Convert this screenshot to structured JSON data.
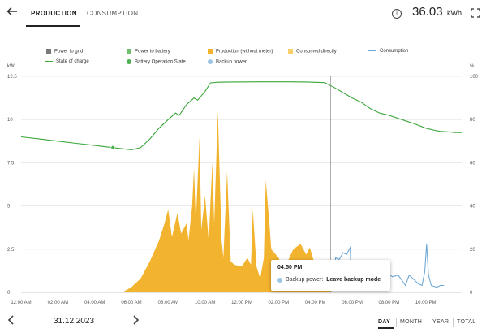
{
  "header": {
    "tabs": [
      {
        "label": "PRODUCTION",
        "active": true
      },
      {
        "label": "CONSUMPTION",
        "active": false
      }
    ],
    "total_value": "36.03",
    "total_unit": "kWh",
    "icons": {
      "back": "arrow-left-icon",
      "info": "info-icon",
      "fullscreen": "fullscreen-icon"
    }
  },
  "legend": [
    {
      "label": "Power to grid",
      "color": "#7a7a7a",
      "marker": "square"
    },
    {
      "label": "Power to battery",
      "color": "#6fbf6f",
      "marker": "square"
    },
    {
      "label": "Production (without meter)",
      "color": "#f2b32e",
      "marker": "square"
    },
    {
      "label": "Consumed directly",
      "color": "#f9cf6a",
      "marker": "square"
    },
    {
      "label": "Consumption",
      "color": "#6fa8d6",
      "marker": "line"
    },
    {
      "label": "State of charge",
      "color": "#3aa63a",
      "marker": "line"
    },
    {
      "label": "Battery Operation State",
      "color": "#4caf50",
      "marker": "dot"
    },
    {
      "label": "Backup power",
      "color": "#9cc5e3",
      "marker": "dot"
    }
  ],
  "chart_data": {
    "type": "area",
    "left_axis": {
      "unit": "kW",
      "ticks": [
        "0",
        "2.5",
        "5",
        "7.5",
        "10",
        "12.5"
      ],
      "range": [
        0,
        12.5
      ]
    },
    "right_axis": {
      "unit": "%",
      "ticks": [
        "0",
        "20",
        "40",
        "60",
        "80",
        "100"
      ],
      "range": [
        0,
        100
      ]
    },
    "x_labels": [
      "12:00 AM",
      "02:00 AM",
      "04:00 AM",
      "06:00 AM",
      "08:00 AM",
      "10:00 AM",
      "12:00 PM",
      "02:00 PM",
      "04:00 PM",
      "06:00 PM",
      "08:00 PM",
      "10:00 PM"
    ],
    "x_range_hours": [
      0,
      24
    ],
    "series": [
      {
        "name": "Production (without meter)",
        "axis": "left",
        "color": "#f2b32e",
        "points": [
          [
            0,
            0
          ],
          [
            5.5,
            0
          ],
          [
            6,
            0.3
          ],
          [
            6.5,
            0.8
          ],
          [
            7,
            1.8
          ],
          [
            7.5,
            3.0
          ],
          [
            7.8,
            4.0
          ],
          [
            8,
            4.8
          ],
          [
            8.2,
            3.2
          ],
          [
            8.5,
            4.6
          ],
          [
            8.7,
            3.4
          ],
          [
            9,
            4.0
          ],
          [
            9.1,
            3.0
          ],
          [
            9.3,
            5.0
          ],
          [
            9.4,
            7.2
          ],
          [
            9.5,
            4.0
          ],
          [
            9.7,
            9.0
          ],
          [
            9.8,
            3.6
          ],
          [
            10,
            5.6
          ],
          [
            10.2,
            3.0
          ],
          [
            10.4,
            7.5
          ],
          [
            10.5,
            4.0
          ],
          [
            10.7,
            10.5
          ],
          [
            10.9,
            3.0
          ],
          [
            11,
            2.0
          ],
          [
            11.2,
            7.0
          ],
          [
            11.4,
            1.8
          ],
          [
            11.6,
            1.6
          ],
          [
            12,
            1.5
          ],
          [
            12.3,
            2.0
          ],
          [
            12.5,
            1.6
          ],
          [
            12.6,
            4.8
          ],
          [
            12.8,
            1.5
          ],
          [
            13,
            0.8
          ],
          [
            13.2,
            2.0
          ],
          [
            13.3,
            6.5
          ],
          [
            13.5,
            4.0
          ],
          [
            13.6,
            2.5
          ],
          [
            14,
            2.0
          ],
          [
            14.2,
            1.5
          ],
          [
            14.5,
            1.8
          ],
          [
            14.8,
            2.5
          ],
          [
            15.2,
            2.8
          ],
          [
            15.5,
            2.2
          ],
          [
            15.7,
            2.6
          ],
          [
            16,
            1.5
          ],
          [
            16.3,
            1.2
          ],
          [
            16.6,
            0.6
          ],
          [
            16.8,
            0.1
          ],
          [
            17,
            0
          ]
        ]
      },
      {
        "name": "Consumption",
        "axis": "left",
        "color": "#6fa8d6",
        "points": [
          [
            16.9,
            0.1
          ],
          [
            17,
            1.0
          ],
          [
            17.1,
            2.0
          ],
          [
            17.3,
            1.9
          ],
          [
            17.5,
            2.3
          ],
          [
            17.7,
            2.2
          ],
          [
            17.8,
            2.4
          ],
          [
            17.9,
            2.6
          ],
          [
            17.95,
            0.2
          ],
          [
            18.1,
            0.4
          ],
          [
            18.4,
            0.9
          ],
          [
            18.7,
            0.6
          ],
          [
            19,
            0.8
          ],
          [
            19.3,
            1.2
          ],
          [
            19.6,
            1.0
          ],
          [
            19.9,
            1.1
          ],
          [
            20.2,
            0.9
          ],
          [
            20.5,
            1.0
          ],
          [
            20.7,
            0.7
          ],
          [
            20.9,
            0.4
          ],
          [
            21.1,
            1.0
          ],
          [
            21.4,
            0.7
          ],
          [
            21.6,
            0.5
          ],
          [
            21.8,
            0.4
          ],
          [
            21.95,
            1.2
          ],
          [
            22.05,
            2.8
          ],
          [
            22.15,
            1.0
          ],
          [
            22.3,
            0.4
          ],
          [
            22.6,
            0.3
          ],
          [
            22.8,
            0.4
          ],
          [
            23,
            0.4
          ]
        ]
      },
      {
        "name": "State of charge",
        "axis": "right",
        "color": "#3aa63a",
        "points": [
          [
            0,
            72
          ],
          [
            1,
            71
          ],
          [
            2,
            70
          ],
          [
            3,
            69
          ],
          [
            4,
            68
          ],
          [
            5,
            67
          ],
          [
            6,
            66
          ],
          [
            6.5,
            67
          ],
          [
            7,
            71
          ],
          [
            7.5,
            76
          ],
          [
            8,
            80
          ],
          [
            8.4,
            83
          ],
          [
            8.6,
            82
          ],
          [
            9,
            87
          ],
          [
            9.4,
            90
          ],
          [
            9.6,
            89
          ],
          [
            10,
            93
          ],
          [
            10.3,
            97
          ],
          [
            10.7,
            97.3
          ],
          [
            11.5,
            97.4
          ],
          [
            13,
            97.5
          ],
          [
            14.5,
            97.5
          ],
          [
            15.5,
            97.4
          ],
          [
            16.5,
            97.1
          ],
          [
            17,
            95
          ],
          [
            18,
            90
          ],
          [
            18.5,
            88
          ],
          [
            19,
            85
          ],
          [
            19.5,
            83
          ],
          [
            20,
            82
          ],
          [
            20.7,
            80
          ],
          [
            21.4,
            78
          ],
          [
            22,
            76
          ],
          [
            22.5,
            75
          ],
          [
            22.8,
            74.5
          ],
          [
            23.3,
            74.3
          ],
          [
            23.6,
            74
          ],
          [
            23.9,
            74
          ],
          [
            24,
            74
          ]
        ]
      }
    ],
    "markers": [
      {
        "series": "State of charge",
        "x_hours": 5.0,
        "value": 67,
        "color": "#4caf50"
      },
      {
        "series": "Backup power",
        "x_hours": 17.3,
        "value": 0.2,
        "color": "#9cc5e3"
      }
    ],
    "cursor_hours": 16.83
  },
  "tooltip": {
    "time": "04:50 PM",
    "label": "Backup power:",
    "value": "Leave backup mode"
  },
  "footer": {
    "date": "31.12.2023",
    "periods": [
      {
        "label": "DAY",
        "active": true
      },
      {
        "label": "MONTH",
        "active": false
      },
      {
        "label": "YEAR",
        "active": false
      },
      {
        "label": "TOTAL",
        "active": false
      }
    ]
  }
}
